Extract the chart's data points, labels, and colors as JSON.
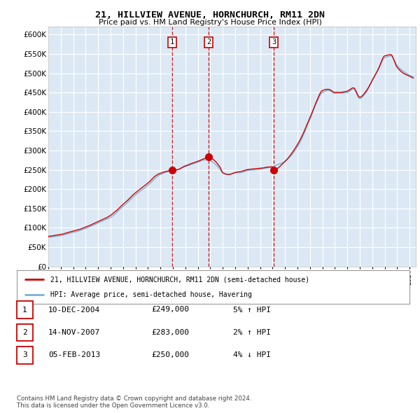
{
  "title": "21, HILLVIEW AVENUE, HORNCHURCH, RM11 2DN",
  "subtitle": "Price paid vs. HM Land Registry's House Price Index (HPI)",
  "red_label": "21, HILLVIEW AVENUE, HORNCHURCH, RM11 2DN (semi-detached house)",
  "blue_label": "HPI: Average price, semi-detached house, Havering",
  "footer": "Contains HM Land Registry data © Crown copyright and database right 2024.\nThis data is licensed under the Open Government Licence v3.0.",
  "transactions": [
    {
      "num": 1,
      "date": "10-DEC-2004",
      "price": "£249,000",
      "hpi": "5% ↑ HPI",
      "year": 2004.95
    },
    {
      "num": 2,
      "date": "14-NOV-2007",
      "price": "£283,000",
      "hpi": "2% ↑ HPI",
      "year": 2007.87
    },
    {
      "num": 3,
      "date": "05-FEB-2013",
      "price": "£250,000",
      "hpi": "4% ↓ HPI",
      "year": 2013.1
    }
  ],
  "ylim": [
    0,
    620000
  ],
  "yticks": [
    0,
    50000,
    100000,
    150000,
    200000,
    250000,
    300000,
    350000,
    400000,
    450000,
    500000,
    550000,
    600000
  ],
  "bg_color": "#dce9f5",
  "grid_color": "#ffffff",
  "red_color": "#cc0000",
  "blue_color": "#7ab0d8",
  "trans_prices": [
    249000,
    283000,
    250000
  ],
  "xlim_start": 1995,
  "xlim_end": 2024.5
}
